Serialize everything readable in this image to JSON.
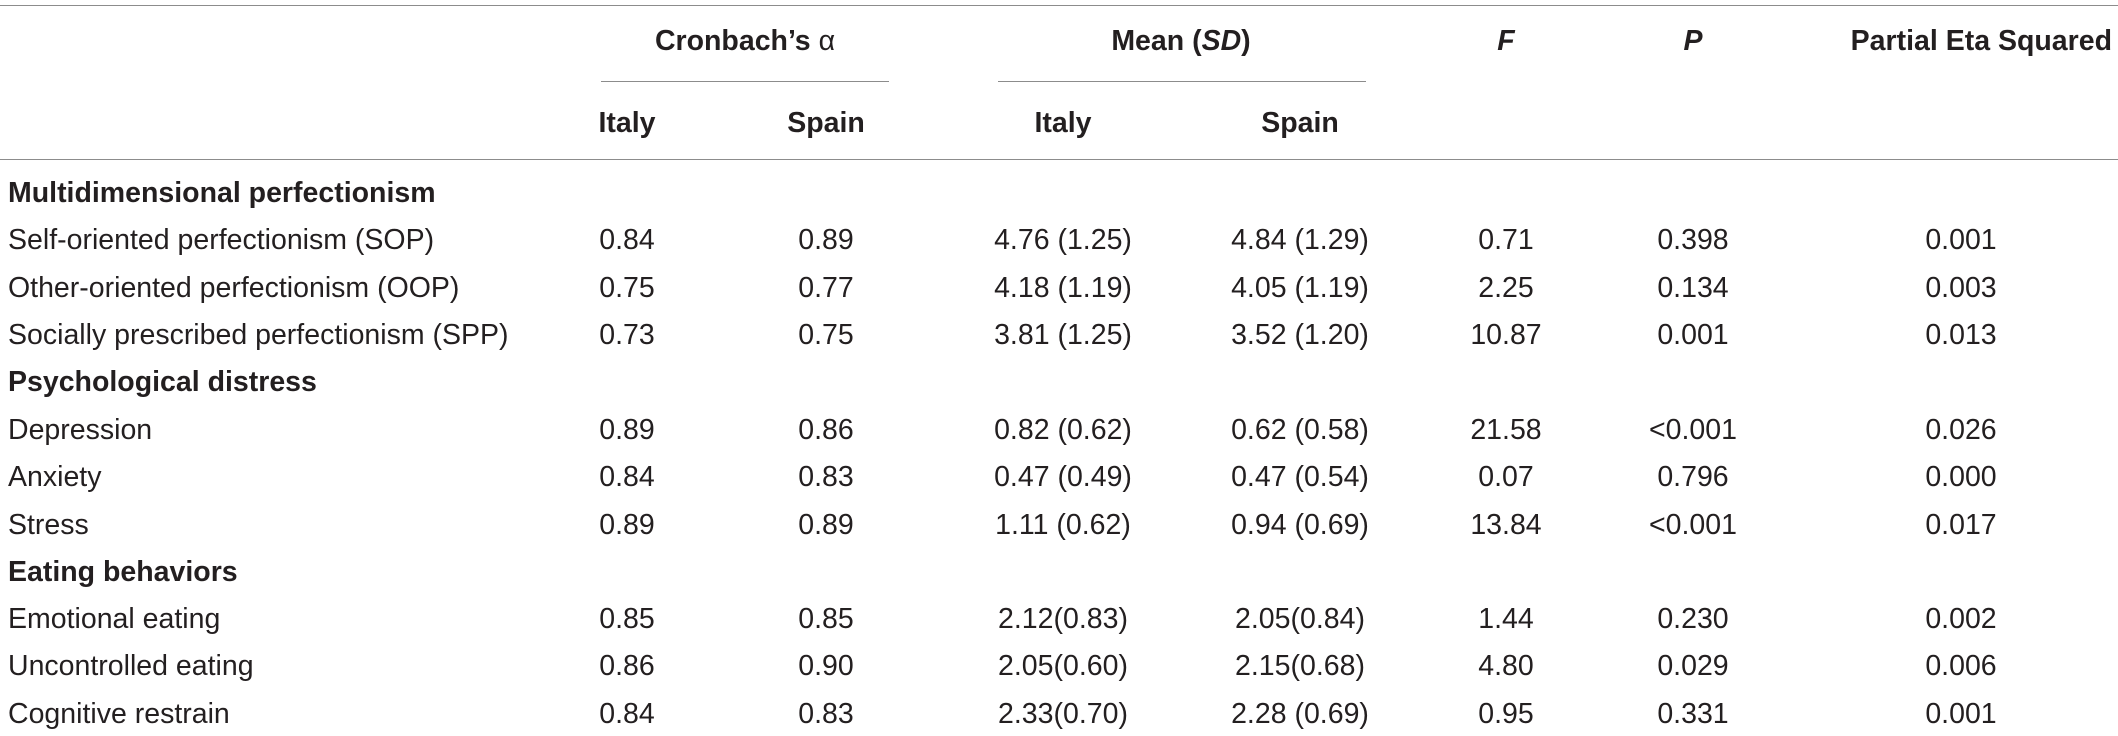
{
  "header": {
    "cronbach_prefix": "Cronbach’s ",
    "cronbach_symbol": "α",
    "mean_prefix": "Mean (",
    "mean_sd": "SD",
    "mean_suffix": ")",
    "f_label": "F",
    "p_label": "P",
    "eta_label": "Partial Eta Squared",
    "italy_1": "Italy",
    "spain_1": "Spain",
    "italy_2": "Italy",
    "spain_2": "Spain"
  },
  "sections": [
    {
      "title": "Multidimensional perfectionism",
      "rows": [
        {
          "label": "Self-oriented perfectionism (SOP)",
          "alpha_italy": "0.84",
          "alpha_spain": "0.89",
          "mean_italy": "4.76 (1.25)",
          "mean_spain": "4.84 (1.29)",
          "f": "0.71",
          "p": "0.398",
          "eta": "0.001"
        },
        {
          "label": "Other-oriented perfectionism (OOP)",
          "alpha_italy": "0.75",
          "alpha_spain": "0.77",
          "mean_italy": "4.18 (1.19)",
          "mean_spain": "4.05 (1.19)",
          "f": "2.25",
          "p": "0.134",
          "eta": "0.003"
        },
        {
          "label": "Socially prescribed perfectionism (SPP)",
          "alpha_italy": "0.73",
          "alpha_spain": "0.75",
          "mean_italy": "3.81 (1.25)",
          "mean_spain": "3.52 (1.20)",
          "f": "10.87",
          "p": "0.001",
          "eta": "0.013"
        }
      ]
    },
    {
      "title": "Psychological distress",
      "rows": [
        {
          "label": "Depression",
          "alpha_italy": "0.89",
          "alpha_spain": "0.86",
          "mean_italy": "0.82 (0.62)",
          "mean_spain": "0.62 (0.58)",
          "f": "21.58",
          "p": "<0.001",
          "eta": "0.026"
        },
        {
          "label": "Anxiety",
          "alpha_italy": "0.84",
          "alpha_spain": "0.83",
          "mean_italy": "0.47 (0.49)",
          "mean_spain": "0.47 (0.54)",
          "f": "0.07",
          "p": "0.796",
          "eta": "0.000"
        },
        {
          "label": "Stress",
          "alpha_italy": "0.89",
          "alpha_spain": "0.89",
          "mean_italy": "1.11 (0.62)",
          "mean_spain": "0.94 (0.69)",
          "f": "13.84",
          "p": "<0.001",
          "eta": "0.017"
        }
      ]
    },
    {
      "title": "Eating behaviors",
      "rows": [
        {
          "label": "Emotional eating",
          "alpha_italy": "0.85",
          "alpha_spain": "0.85",
          "mean_italy": "2.12(0.83)",
          "mean_spain": "2.05(0.84)",
          "f": "1.44",
          "p": "0.230",
          "eta": "0.002"
        },
        {
          "label": "Uncontrolled eating",
          "alpha_italy": "0.86",
          "alpha_spain": "0.90",
          "mean_italy": "2.05(0.60)",
          "mean_spain": "2.15(0.68)",
          "f": "4.80",
          "p": "0.029",
          "eta": "0.006"
        },
        {
          "label": "Cognitive restrain",
          "alpha_italy": "0.84",
          "alpha_spain": "0.83",
          "mean_italy": "2.33(0.70)",
          "mean_spain": "2.28 (0.69)",
          "f": "0.95",
          "p": "0.331",
          "eta": "0.001"
        }
      ]
    }
  ]
}
